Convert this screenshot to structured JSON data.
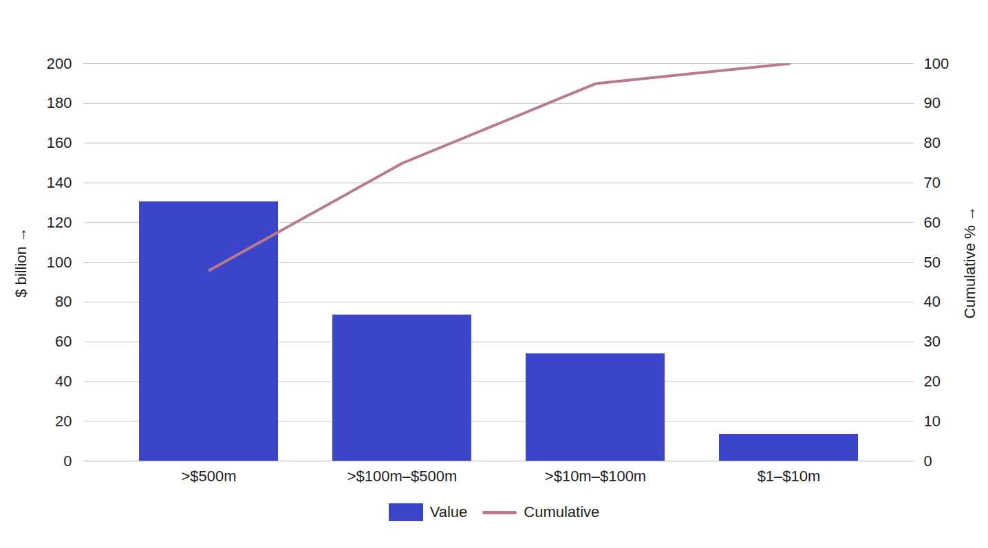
{
  "chart_data": {
    "type": "bar",
    "categories": [
      ">$500m",
      ">$100m–$500m",
      ">$10m–$100m",
      "$1–$10m"
    ],
    "series": [
      {
        "name": "Value",
        "type": "bar",
        "color": "#3a45c9",
        "values": [
          130.5,
          73.5,
          54,
          13.5
        ]
      },
      {
        "name": "Cumulative",
        "type": "line",
        "axis": "y2",
        "color": "#b87a8c",
        "values": [
          48,
          75,
          95,
          100
        ]
      }
    ],
    "ylabel": "$ billion",
    "y2label": "Cumulative %",
    "ylim": [
      0,
      200
    ],
    "yticks": [
      0,
      20,
      40,
      60,
      80,
      100,
      120,
      140,
      160,
      180,
      200
    ],
    "y2lim": [
      0,
      100
    ],
    "y2ticks": [
      0,
      10,
      20,
      30,
      40,
      50,
      60,
      70,
      80,
      90,
      100
    ],
    "grid": true,
    "legend": "bottom"
  }
}
